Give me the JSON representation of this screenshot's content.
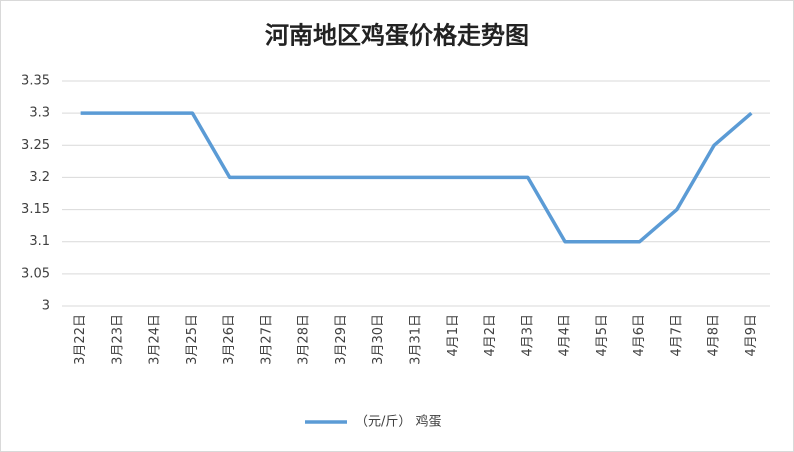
{
  "chart_data": {
    "type": "line",
    "title": "河南地区鸡蛋价格走势图",
    "categories": [
      "3月22日",
      "3月23日",
      "3月24日",
      "3月25日",
      "3月26日",
      "3月27日",
      "3月28日",
      "3月29日",
      "3月30日",
      "3月31日",
      "4月1日",
      "4月2日",
      "4月3日",
      "4月4日",
      "4月5日",
      "4月6日",
      "4月7日",
      "4月8日",
      "4月9日"
    ],
    "series": [
      {
        "name": "（元/斤） 鸡蛋",
        "color": "#5b9bd5",
        "values": [
          3.3,
          3.3,
          3.3,
          3.3,
          3.2,
          3.2,
          3.2,
          3.2,
          3.2,
          3.2,
          3.2,
          3.2,
          3.2,
          3.1,
          3.1,
          3.1,
          3.15,
          3.25,
          3.3
        ]
      }
    ],
    "ylim": [
      3,
      3.35
    ],
    "yticks": [
      3,
      3.05,
      3.1,
      3.15,
      3.2,
      3.25,
      3.3,
      3.35
    ],
    "grid": true,
    "legend": "bottom"
  }
}
